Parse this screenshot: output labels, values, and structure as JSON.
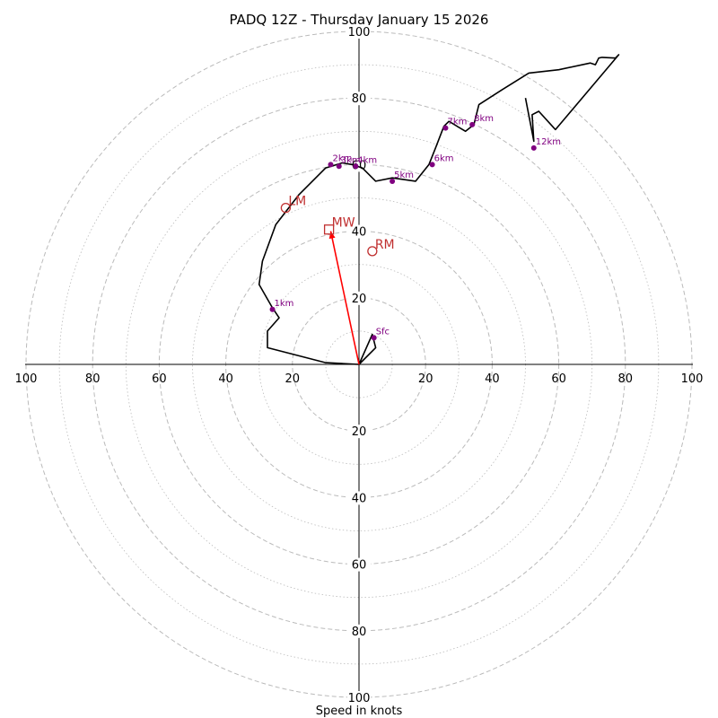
{
  "chart_data": {
    "type": "hodograph",
    "title": "PADQ 12Z - Thursday January 15 2026",
    "xlabel": "Speed in knots",
    "ylabel": "",
    "xlim": [
      -100,
      100
    ],
    "ylim": [
      -100,
      100
    ],
    "grid": true,
    "ring_speeds_major": [
      10,
      20,
      30,
      40,
      50,
      60,
      70,
      80,
      90,
      100
    ],
    "tick_values": [
      20,
      40,
      60,
      80,
      100
    ],
    "tick_labels": [
      "20",
      "40",
      "60",
      "80",
      "100"
    ],
    "hodograph": {
      "u": [
        0,
        5,
        4,
        0,
        -10,
        -27.5,
        -27.5,
        -24,
        -26,
        -30,
        -29,
        -25,
        -18,
        -10,
        -5,
        -2,
        1,
        5,
        10,
        17,
        21,
        23,
        25.5,
        27,
        32,
        34.5,
        36,
        43,
        51,
        60,
        69.5,
        71,
        72,
        73,
        77,
        78,
        59,
        54,
        52,
        52.5,
        50
      ],
      "v": [
        0,
        5,
        9,
        0,
        0.5,
        5,
        10,
        14,
        17,
        24,
        31,
        42,
        51,
        59,
        60.5,
        60,
        59,
        55,
        56,
        55,
        60,
        65,
        71.5,
        73,
        70,
        72,
        78,
        82.5,
        87.5,
        88.5,
        90.5,
        90,
        92,
        92.2,
        92,
        93,
        70.5,
        76,
        75,
        67,
        80
      ],
      "color": "#000000"
    },
    "height_markers": [
      {
        "label": "Sfc",
        "u": 4.5,
        "v": 8
      },
      {
        "label": "1km",
        "u": -26,
        "v": 16.5
      },
      {
        "label": "2km",
        "u": -8.5,
        "v": 60
      },
      {
        "label": "3km",
        "u": -6,
        "v": 59.5
      },
      {
        "label": "4km",
        "u": -1,
        "v": 59.5
      },
      {
        "label": "5km",
        "u": 10,
        "v": 55
      },
      {
        "label": "6km",
        "u": 22,
        "v": 60
      },
      {
        "label": "7km",
        "u": 26,
        "v": 71
      },
      {
        "label": "8km",
        "u": 34,
        "v": 72
      },
      {
        "label": "12km",
        "u": 52.5,
        "v": 65
      }
    ],
    "storm_motions": [
      {
        "label": "LM",
        "shape": "circle",
        "u": -22,
        "v": 47
      },
      {
        "label": "MW",
        "shape": "square",
        "u": -9,
        "v": 40.5
      },
      {
        "label": "RM",
        "shape": "circle",
        "u": 4,
        "v": 34
      }
    ],
    "shear_vector": {
      "from_u": 0,
      "from_v": 0,
      "to_u": -8.5,
      "to_v": 40
    },
    "colors": {
      "marker": "#800080",
      "storm_motion": "#c03030",
      "shear_vector": "#ff0000",
      "grid": "#bbbbbb",
      "axis": "#000000"
    }
  }
}
